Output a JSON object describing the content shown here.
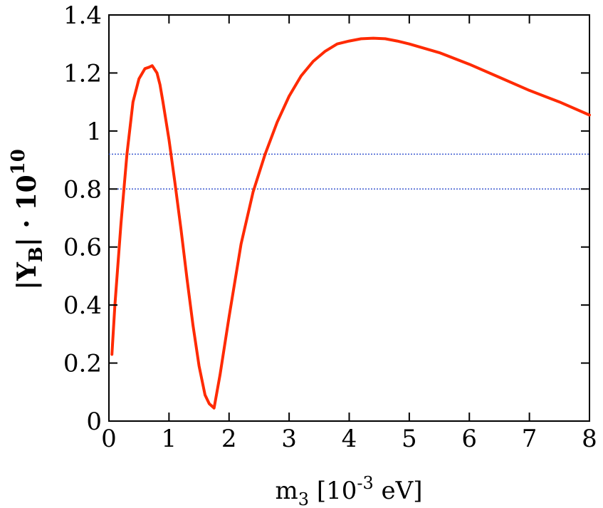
{
  "chart_data": {
    "type": "line",
    "xlabel": {
      "base": "m",
      "sub": "3",
      "mid": " [10",
      "sup": "-3",
      "tail": " eV]"
    },
    "ylabel": {
      "prefix": "|Y",
      "sub": "B",
      "mid": "| · 10",
      "sup": "10"
    },
    "xlim": [
      0,
      8
    ],
    "ylim": [
      0,
      1.4
    ],
    "x_ticks": [
      "0",
      "1",
      "2",
      "3",
      "4",
      "5",
      "6",
      "7",
      "8"
    ],
    "y_ticks": [
      "0",
      "0.2",
      "0.4",
      "0.6",
      "0.8",
      "1",
      "1.2",
      "1.4"
    ],
    "grid": false,
    "colors": {
      "series": "#ff2a00",
      "reference": "#3c5ad0"
    },
    "reference_lines": [
      0.92,
      0.8
    ],
    "series": [
      {
        "x": [
          0.05,
          0.1,
          0.2,
          0.3,
          0.4,
          0.5,
          0.6,
          0.67,
          0.72,
          0.8,
          0.85,
          0.9,
          1.0,
          1.1,
          1.2,
          1.3,
          1.4,
          1.5,
          1.6,
          1.67,
          1.75,
          1.85,
          2.0,
          2.2,
          2.4,
          2.6,
          2.8,
          3.0,
          3.2,
          3.4,
          3.6,
          3.8,
          4.0,
          4.2,
          4.4,
          4.6,
          4.8,
          5.0,
          5.5,
          6.0,
          6.5,
          7.0,
          7.5,
          8.0
        ],
        "y": [
          0.23,
          0.4,
          0.68,
          0.92,
          1.1,
          1.18,
          1.215,
          1.22,
          1.225,
          1.2,
          1.16,
          1.1,
          0.97,
          0.82,
          0.66,
          0.49,
          0.33,
          0.19,
          0.09,
          0.06,
          0.045,
          0.16,
          0.36,
          0.61,
          0.79,
          0.92,
          1.03,
          1.12,
          1.19,
          1.24,
          1.275,
          1.3,
          1.31,
          1.318,
          1.32,
          1.318,
          1.31,
          1.3,
          1.27,
          1.23,
          1.185,
          1.14,
          1.1,
          1.055
        ]
      }
    ]
  }
}
